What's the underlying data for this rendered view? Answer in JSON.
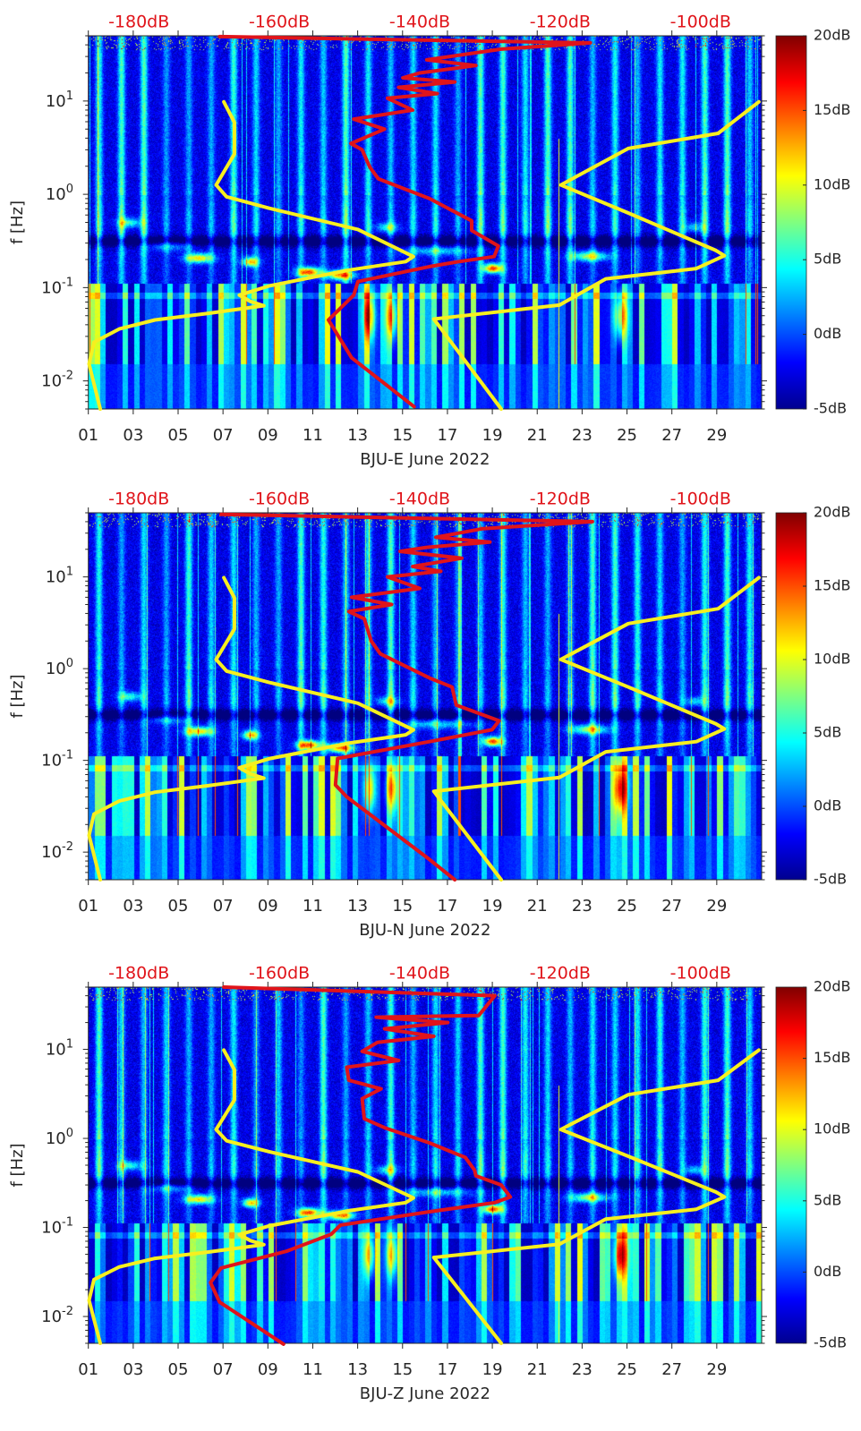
{
  "colors": {
    "low_model": "#f7ef1f",
    "high_model": "#f7ef1f",
    "station_curve": "#e0141a",
    "top_axis_text": "#e0141a",
    "axis": "#262626"
  },
  "shared_series": {
    "low_noise_model": {
      "points_f_hz_db": [
        [
          9.8,
          -167.9
        ],
        [
          5.9,
          -166.4
        ],
        [
          2.7,
          -166.4
        ],
        [
          1.26,
          -169.0
        ],
        [
          0.94,
          -167.5
        ],
        [
          0.71,
          -161.5
        ],
        [
          0.42,
          -148.8
        ],
        [
          0.215,
          -140.9
        ],
        [
          0.19,
          -142.0
        ],
        [
          0.154,
          -150.1
        ],
        [
          0.104,
          -161.5
        ],
        [
          0.083,
          -165.7
        ],
        [
          0.071,
          -164.1
        ],
        [
          0.064,
          -162.2
        ],
        [
          0.053,
          -170.1
        ],
        [
          0.045,
          -177.7
        ],
        [
          0.036,
          -182.8
        ],
        [
          0.026,
          -186.4
        ],
        [
          0.0152,
          -187.1
        ],
        [
          0.005,
          -185.5
        ]
      ]
    },
    "high_noise_model": {
      "points_f_hz_db": [
        [
          9.8,
          -91.7
        ],
        [
          4.5,
          -97.5
        ],
        [
          3.1,
          -110.3
        ],
        [
          1.26,
          -119.9
        ],
        [
          0.63,
          -110.3
        ],
        [
          0.25,
          -97.8
        ],
        [
          0.22,
          -96.6
        ],
        [
          0.16,
          -100.6
        ],
        [
          0.124,
          -113.5
        ],
        [
          0.065,
          -120.1
        ],
        [
          0.046,
          -138.0
        ],
        [
          0.005,
          -128.4
        ]
      ]
    }
  },
  "chart_data": [
    {
      "type": "heatmap",
      "title": "",
      "xlabel": "BJU-E June 2022",
      "ylabel": "f [Hz]",
      "x_range_day": [
        1,
        31
      ],
      "x_tick_values": [
        1,
        3,
        5,
        7,
        9,
        11,
        13,
        15,
        17,
        19,
        21,
        23,
        25,
        27,
        29
      ],
      "x_tick_labels": [
        "01",
        "03",
        "05",
        "07",
        "09",
        "11",
        "13",
        "15",
        "17",
        "19",
        "21",
        "23",
        "25",
        "27",
        "29"
      ],
      "y_scale": "log",
      "y_range_hz": [
        0.005,
        50
      ],
      "y_ticks": [
        {
          "value": 10,
          "base": "10",
          "exp": "1"
        },
        {
          "value": 1,
          "base": "10",
          "exp": "0"
        },
        {
          "value": 0.1,
          "base": "10",
          "exp": "-1"
        },
        {
          "value": 0.01,
          "base": "10",
          "exp": "-2"
        }
      ],
      "top_axis": {
        "range_db": [
          -187.2,
          -91.3
        ],
        "tick_values": [
          -180,
          -160,
          -140,
          -120,
          -100
        ],
        "tick_labels": [
          "-180dB",
          "-160dB",
          "-140dB",
          "-120dB",
          "-100dB"
        ]
      },
      "colorbar": {
        "colormap": "jet",
        "range_db": [
          -5,
          20
        ],
        "tick_values": [
          20,
          15,
          10,
          5,
          0,
          -5
        ],
        "tick_labels": [
          "20dB",
          "15dB",
          "10dB",
          "5dB",
          "0dB",
          "-5dB"
        ]
      },
      "station_curve": {
        "points_f_hz_db": [
          [
            49,
            -168.5
          ],
          [
            42,
            -115.7
          ],
          [
            36,
            -128.4
          ],
          [
            27.6,
            -139.0
          ],
          [
            24,
            -132.0
          ],
          [
            20,
            -140.0
          ],
          [
            17.7,
            -142.4
          ],
          [
            16,
            -135.0
          ],
          [
            14,
            -143.0
          ],
          [
            12,
            -137.5
          ],
          [
            10.7,
            -144.6
          ],
          [
            8,
            -141.0
          ],
          [
            6.4,
            -149.4
          ],
          [
            5,
            -145.0
          ],
          [
            3.5,
            -149.8
          ],
          [
            3.0,
            -148.2
          ],
          [
            1.95,
            -147.1
          ],
          [
            1.47,
            -145.9
          ],
          [
            0.9,
            -138.6
          ],
          [
            0.52,
            -132.6
          ],
          [
            0.41,
            -132.6
          ],
          [
            0.28,
            -128.8
          ],
          [
            0.215,
            -129.4
          ],
          [
            0.19,
            -134.4
          ],
          [
            0.168,
            -138.6
          ],
          [
            0.116,
            -148.8
          ],
          [
            0.083,
            -149.4
          ],
          [
            0.045,
            -153.0
          ],
          [
            0.0177,
            -149.7
          ],
          [
            0.0053,
            -140.8
          ]
        ]
      }
    },
    {
      "type": "heatmap",
      "title": "",
      "xlabel": "BJU-N June 2022",
      "ylabel": "f [Hz]",
      "x_range_day": [
        1,
        31
      ],
      "x_tick_values": [
        1,
        3,
        5,
        7,
        9,
        11,
        13,
        15,
        17,
        19,
        21,
        23,
        25,
        27,
        29
      ],
      "x_tick_labels": [
        "01",
        "03",
        "05",
        "07",
        "09",
        "11",
        "13",
        "15",
        "17",
        "19",
        "21",
        "23",
        "25",
        "27",
        "29"
      ],
      "y_scale": "log",
      "y_range_hz": [
        0.005,
        50
      ],
      "y_ticks": [
        {
          "value": 10,
          "base": "10",
          "exp": "1"
        },
        {
          "value": 1,
          "base": "10",
          "exp": "0"
        },
        {
          "value": 0.1,
          "base": "10",
          "exp": "-1"
        },
        {
          "value": 0.01,
          "base": "10",
          "exp": "-2"
        }
      ],
      "top_axis": {
        "range_db": [
          -187.2,
          -91.3
        ],
        "tick_values": [
          -180,
          -160,
          -140,
          -120,
          -100
        ],
        "tick_labels": [
          "-180dB",
          "-160dB",
          "-140dB",
          "-120dB",
          "-100dB"
        ]
      },
      "colorbar": {
        "colormap": "jet",
        "range_db": [
          -5,
          20
        ],
        "tick_values": [
          20,
          15,
          10,
          5,
          0,
          -5
        ],
        "tick_labels": [
          "20dB",
          "15dB",
          "10dB",
          "5dB",
          "0dB",
          "-5dB"
        ]
      },
      "station_curve": {
        "points_f_hz_db": [
          [
            48,
            -168.3
          ],
          [
            40,
            -115.4
          ],
          [
            33.6,
            -131.0
          ],
          [
            27,
            -137.7
          ],
          [
            24,
            -130.0
          ],
          [
            21,
            -139.0
          ],
          [
            19,
            -142.8
          ],
          [
            16,
            -134.0
          ],
          [
            13,
            -141.0
          ],
          [
            11.5,
            -137.0
          ],
          [
            10,
            -144.6
          ],
          [
            7.5,
            -140.0
          ],
          [
            6.0,
            -149.7
          ],
          [
            5,
            -144.0
          ],
          [
            4.2,
            -150.1
          ],
          [
            3.5,
            -147.9
          ],
          [
            2.0,
            -146.9
          ],
          [
            1.45,
            -145.6
          ],
          [
            0.79,
            -138.6
          ],
          [
            0.63,
            -135.4
          ],
          [
            0.4,
            -134.8
          ],
          [
            0.27,
            -128.7
          ],
          [
            0.216,
            -129.7
          ],
          [
            0.16,
            -138.6
          ],
          [
            0.105,
            -151.7
          ],
          [
            0.054,
            -152.0
          ],
          [
            0.04,
            -150.4
          ],
          [
            0.0083,
            -138.6
          ],
          [
            0.005,
            -135.0
          ]
        ]
      }
    },
    {
      "type": "heatmap",
      "title": "",
      "xlabel": "BJU-Z June 2022",
      "ylabel": "f [Hz]",
      "x_range_day": [
        1,
        31
      ],
      "x_tick_values": [
        1,
        3,
        5,
        7,
        9,
        11,
        13,
        15,
        17,
        19,
        21,
        23,
        25,
        27,
        29
      ],
      "x_tick_labels": [
        "01",
        "03",
        "05",
        "07",
        "09",
        "11",
        "13",
        "15",
        "17",
        "19",
        "21",
        "23",
        "25",
        "27",
        "29"
      ],
      "y_scale": "log",
      "y_range_hz": [
        0.005,
        50
      ],
      "y_ticks": [
        {
          "value": 10,
          "base": "10",
          "exp": "1"
        },
        {
          "value": 1,
          "base": "10",
          "exp": "0"
        },
        {
          "value": 0.1,
          "base": "10",
          "exp": "-1"
        },
        {
          "value": 0.01,
          "base": "10",
          "exp": "-2"
        }
      ],
      "top_axis": {
        "range_db": [
          -187.2,
          -91.3
        ],
        "tick_values": [
          -180,
          -160,
          -140,
          -120,
          -100
        ],
        "tick_labels": [
          "-180dB",
          "-160dB",
          "-140dB",
          "-120dB",
          "-100dB"
        ]
      },
      "colorbar": {
        "colormap": "jet",
        "range_db": [
          -5,
          20
        ],
        "tick_values": [
          20,
          15,
          10,
          5,
          0,
          -5
        ],
        "tick_labels": [
          "20dB",
          "15dB",
          "10dB",
          "5dB",
          "0dB",
          "-5dB"
        ]
      },
      "station_curve": {
        "points_f_hz_db": [
          [
            50,
            -167.9
          ],
          [
            40,
            -129.3
          ],
          [
            24,
            -131.6
          ],
          [
            23,
            -146.2
          ],
          [
            20,
            -136.0
          ],
          [
            17,
            -145.0
          ],
          [
            14,
            -138.0
          ],
          [
            12,
            -146.0
          ],
          [
            9.5,
            -148.2
          ],
          [
            7.5,
            -143.0
          ],
          [
            6.3,
            -150.4
          ],
          [
            4.5,
            -150.1
          ],
          [
            3.6,
            -145.5
          ],
          [
            2.8,
            -148.2
          ],
          [
            1.66,
            -147.9
          ],
          [
            1.32,
            -145.0
          ],
          [
            0.89,
            -138.6
          ],
          [
            0.61,
            -133.5
          ],
          [
            0.44,
            -132.2
          ],
          [
            0.38,
            -132.0
          ],
          [
            0.3,
            -128.4
          ],
          [
            0.22,
            -127.1
          ],
          [
            0.19,
            -129.3
          ],
          [
            0.15,
            -138.6
          ],
          [
            0.106,
            -151.3
          ],
          [
            0.084,
            -152.6
          ],
          [
            0.054,
            -159.0
          ],
          [
            0.035,
            -168.3
          ],
          [
            0.024,
            -169.8
          ],
          [
            0.0145,
            -168.5
          ],
          [
            0.0049,
            -159.4
          ]
        ]
      }
    }
  ]
}
